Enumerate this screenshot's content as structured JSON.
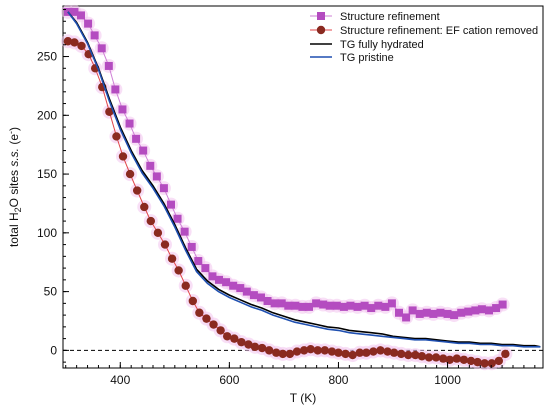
{
  "chart_data": {
    "type": "scatter",
    "xlabel": "T (K)",
    "ylabel": {
      "prefix": "total H",
      "sub": "2",
      "mid": "O sites ",
      "italic": "s.s.",
      "suffix_open": " (e",
      "sup": "-",
      "suffix_close": ")"
    },
    "xlim": [
      295,
      1175
    ],
    "ylim": [
      -15,
      293
    ],
    "xticks": [
      400,
      600,
      800,
      1000
    ],
    "xtick_labels": [
      "400",
      "600",
      "800",
      "1000"
    ],
    "yticks": [
      0,
      50,
      100,
      150,
      200,
      250
    ],
    "ytick_labels": [
      "0",
      "50",
      "100",
      "150",
      "200",
      "250"
    ],
    "x_minor_step": 20,
    "y_minor_step": 10,
    "grid": false,
    "zero_line": {
      "y": 0,
      "style": "dashed",
      "color": "#000000"
    },
    "legend_position": "top-right",
    "series": [
      {
        "name": "Structure refinement",
        "kind": "markers-line",
        "marker": "square",
        "color": "#b44cc0",
        "line_color": "#cf7fd6",
        "x": [
          304,
          316,
          328,
          341,
          353,
          366,
          379,
          391,
          404,
          417,
          429,
          442,
          455,
          467,
          480,
          493,
          505,
          518,
          531,
          543,
          556,
          569,
          581,
          594,
          607,
          620,
          632,
          645,
          658,
          670,
          683,
          696,
          708,
          721,
          734,
          746,
          759,
          772,
          784,
          797,
          810,
          822,
          835,
          848,
          860,
          873,
          886,
          898,
          911,
          924,
          936,
          949,
          962,
          974,
          987,
          1000,
          1012,
          1025,
          1038,
          1051,
          1063,
          1076,
          1089,
          1101
        ],
        "y": [
          288,
          288,
          285,
          278,
          268,
          257,
          242,
          222,
          205,
          193,
          180,
          170,
          157,
          148,
          138,
          124,
          112,
          101,
          88,
          76,
          70,
          63,
          60,
          58,
          55,
          53,
          50,
          47,
          45,
          42,
          40,
          40,
          38,
          38,
          37,
          37,
          40,
          39,
          38,
          38,
          37,
          38,
          37,
          38,
          36,
          38,
          37,
          40,
          32,
          28,
          34,
          31,
          32,
          31,
          32,
          31,
          30,
          32,
          33,
          34,
          35,
          34,
          36,
          39
        ]
      },
      {
        "name": "Structure refinement: EF cation removed",
        "kind": "markers-line",
        "marker": "circle",
        "color": "#8a2a20",
        "line_color": "#e0454a",
        "x": [
          304,
          316,
          329,
          342,
          354,
          367,
          380,
          393,
          405,
          418,
          431,
          444,
          456,
          469,
          482,
          495,
          507,
          520,
          533,
          545,
          558,
          571,
          584,
          596,
          609,
          622,
          635,
          647,
          660,
          673,
          686,
          698,
          711,
          724,
          737,
          749,
          762,
          775,
          788,
          800,
          813,
          826,
          839,
          851,
          864,
          877,
          890,
          902,
          915,
          928,
          941,
          953,
          966,
          979,
          992,
          1004,
          1017,
          1030,
          1043,
          1055,
          1068,
          1081,
          1094,
          1106
        ],
        "y": [
          263,
          262,
          259,
          252,
          240,
          224,
          203,
          182,
          165,
          150,
          136,
          122,
          110,
          100,
          90,
          78,
          68,
          55,
          42,
          32,
          27,
          22,
          17,
          12,
          10,
          7,
          5,
          3,
          2,
          0,
          -2,
          -3,
          -3,
          -1,
          0,
          1,
          0,
          0,
          -1,
          -2,
          -3,
          -4,
          -2,
          -2,
          -1,
          0,
          -1,
          -2,
          -3,
          -4,
          -4,
          -5,
          -6,
          -6,
          -7,
          -8,
          -7,
          -8,
          -9,
          -10,
          -11,
          -11,
          -9,
          -3
        ]
      },
      {
        "name": "TG fully hydrated",
        "kind": "line",
        "color": "#000000",
        "x": [
          304,
          320,
          340,
          360,
          380,
          400,
          420,
          440,
          460,
          480,
          500,
          520,
          540,
          560,
          580,
          600,
          620,
          640,
          660,
          680,
          700,
          720,
          740,
          760,
          780,
          800,
          820,
          840,
          860,
          880,
          900,
          920,
          940,
          960,
          980,
          1000,
          1020,
          1040,
          1060,
          1080,
          1100,
          1120,
          1140,
          1160,
          1170
        ],
        "y": [
          288,
          279,
          262,
          240,
          214,
          190,
          170,
          153,
          140,
          125,
          107,
          87,
          69,
          59,
          52,
          47,
          43,
          39,
          36,
          32,
          29,
          26,
          24,
          22,
          20,
          19,
          17,
          16,
          15,
          14,
          12,
          11,
          10,
          10,
          9,
          8,
          7,
          7,
          6,
          6,
          5,
          5,
          4,
          4,
          3
        ]
      },
      {
        "name": "TG pristine",
        "kind": "line",
        "color": "#1f4fb0",
        "x": [
          304,
          320,
          340,
          360,
          380,
          400,
          420,
          440,
          460,
          480,
          500,
          520,
          540,
          560,
          580,
          600,
          620,
          640,
          660,
          680,
          700,
          720,
          740,
          760,
          780,
          800,
          820,
          840,
          860,
          880,
          900,
          920,
          940,
          960,
          980,
          1000,
          1020,
          1040,
          1060,
          1080,
          1100,
          1120,
          1140,
          1160,
          1170
        ],
        "y": [
          288,
          278,
          261,
          239,
          212,
          188,
          168,
          151,
          138,
          123,
          105,
          85,
          67,
          57,
          50,
          45,
          41,
          37,
          34,
          30,
          27,
          24,
          22,
          20,
          18,
          17,
          15,
          14,
          13,
          12,
          11,
          10,
          9,
          9,
          8,
          7,
          6,
          6,
          5,
          5,
          4,
          4,
          3,
          3,
          3
        ]
      }
    ]
  }
}
